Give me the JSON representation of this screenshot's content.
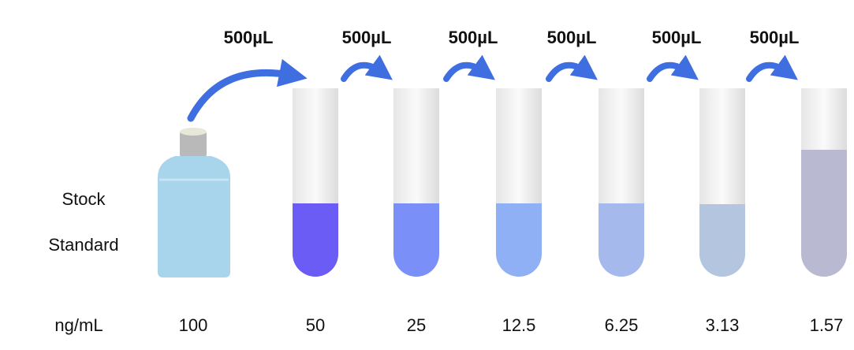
{
  "transfers": [
    {
      "label": "500µL"
    },
    {
      "label": "500µL"
    },
    {
      "label": "500µL"
    },
    {
      "label": "500µL"
    },
    {
      "label": "500µL"
    },
    {
      "label": "500µL"
    }
  ],
  "stock_label": {
    "line1": "Stock",
    "line2": "Standard"
  },
  "unit": "ng/mL",
  "concentrations": [
    "100",
    "50",
    "25",
    "12.5",
    "6.25",
    "3.13",
    "1.57"
  ]
}
